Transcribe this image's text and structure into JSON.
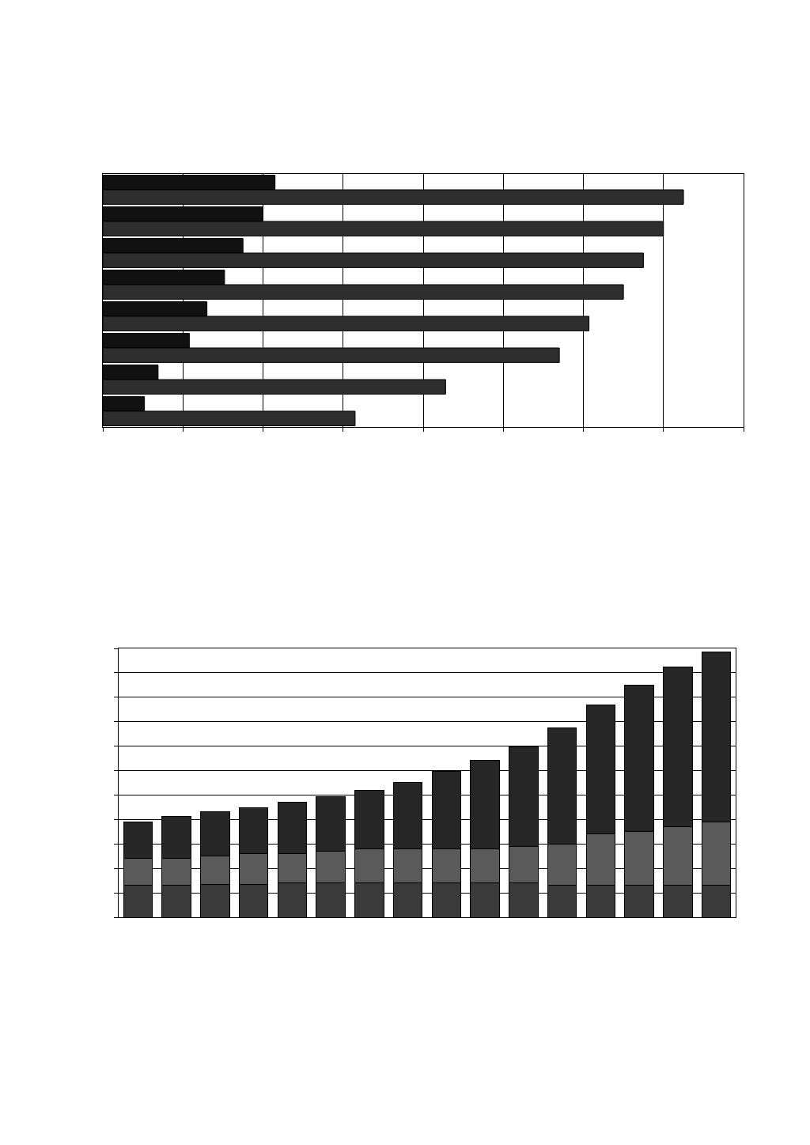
{
  "chart_data": [
    {
      "type": "bar",
      "orientation": "horizontal",
      "grid": true,
      "tick_labels": false,
      "categories": [
        null,
        null,
        null,
        null,
        null,
        null,
        null,
        null
      ],
      "xlim": [
        0,
        8
      ],
      "xticks": [
        0,
        1,
        2,
        3,
        4,
        5,
        6,
        7,
        8
      ],
      "series": [
        {
          "color": "#111111",
          "values": [
            2.15,
            2.0,
            1.75,
            1.52,
            1.3,
            1.08,
            0.69,
            0.52
          ]
        },
        {
          "color": "#2e2e2e",
          "values": [
            7.25,
            7.0,
            6.75,
            6.5,
            6.07,
            5.7,
            4.28,
            3.15
          ]
        }
      ]
    },
    {
      "type": "bar",
      "stacked": true,
      "grid": true,
      "tick_labels": false,
      "categories": [
        null,
        null,
        null,
        null,
        null,
        null,
        null,
        null,
        null,
        null,
        null,
        null,
        null,
        null,
        null,
        null
      ],
      "ylim": [
        0,
        11
      ],
      "yticks": [
        0,
        1,
        2,
        3,
        4,
        5,
        6,
        7,
        8,
        9,
        10,
        11
      ],
      "series": [
        {
          "color": "#3a3a3a",
          "values": [
            1.3,
            1.3,
            1.35,
            1.35,
            1.4,
            1.4,
            1.4,
            1.4,
            1.4,
            1.4,
            1.4,
            1.3,
            1.3,
            1.3,
            1.3,
            1.3
          ]
        },
        {
          "color": "#5a5a5a",
          "values": [
            1.1,
            1.1,
            1.15,
            1.25,
            1.2,
            1.3,
            1.4,
            1.4,
            1.4,
            1.4,
            1.5,
            1.7,
            2.1,
            2.2,
            2.4,
            2.6
          ]
        },
        {
          "color": "#262626",
          "values": [
            1.5,
            1.73,
            1.82,
            1.88,
            2.1,
            2.22,
            2.4,
            2.72,
            3.17,
            3.61,
            4.08,
            4.75,
            5.3,
            5.99,
            6.55,
            6.96
          ]
        }
      ]
    }
  ]
}
